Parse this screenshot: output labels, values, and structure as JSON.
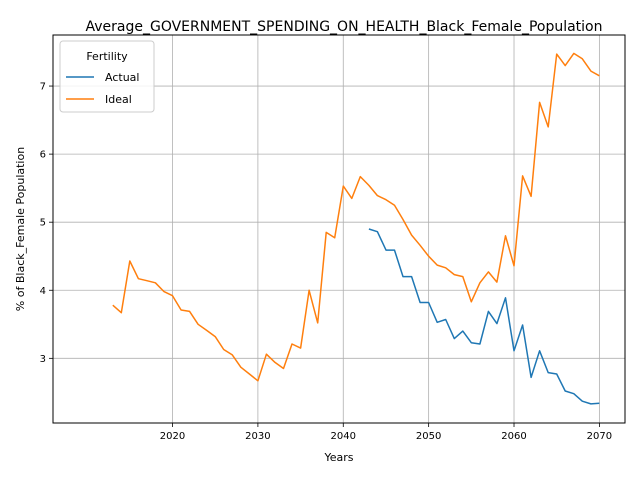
{
  "chart_data": {
    "type": "line",
    "title": "Average_GOVERNMENT_SPENDING_ON_HEALTH_Black_Female_Population",
    "xlabel": "Years",
    "ylabel": "% of Black_Female Population",
    "xlim": [
      2006,
      2073
    ],
    "ylim": [
      2.05,
      7.75
    ],
    "xticks": [
      2020,
      2030,
      2040,
      2050,
      2060,
      2070
    ],
    "yticks": [
      3,
      4,
      5,
      6,
      7
    ],
    "grid": true,
    "legend": {
      "title": "Fertility",
      "placement": "top-left"
    },
    "series": [
      {
        "name": "Actual",
        "color": "#1f77b4",
        "x": [
          2043,
          2044,
          2045,
          2046,
          2047,
          2048,
          2049,
          2050,
          2051,
          2052,
          2053,
          2054,
          2055,
          2056,
          2057,
          2058,
          2059,
          2060,
          2061,
          2062,
          2063,
          2064,
          2065,
          2066,
          2067,
          2068,
          2069,
          2070
        ],
        "y": [
          4.9,
          4.86,
          4.59,
          4.59,
          4.2,
          4.2,
          3.82,
          3.82,
          3.53,
          3.57,
          3.29,
          3.4,
          3.23,
          3.21,
          3.69,
          3.51,
          3.89,
          3.11,
          3.49,
          2.72,
          3.11,
          2.79,
          2.77,
          2.52,
          2.48,
          2.37,
          2.33,
          2.34
        ]
      },
      {
        "name": "Ideal",
        "color": "#ff7f0e",
        "x": [
          2013,
          2014,
          2015,
          2016,
          2017,
          2018,
          2019,
          2020,
          2021,
          2022,
          2023,
          2024,
          2025,
          2026,
          2027,
          2028,
          2029,
          2030,
          2031,
          2032,
          2033,
          2034,
          2035,
          2036,
          2037,
          2038,
          2039,
          2040,
          2041,
          2042,
          2043,
          2044,
          2045,
          2046,
          2047,
          2048,
          2049,
          2050,
          2051,
          2052,
          2053,
          2054,
          2055,
          2056,
          2057,
          2058,
          2059,
          2060,
          2061,
          2062,
          2063,
          2064,
          2065,
          2066,
          2067,
          2068,
          2069,
          2070
        ],
        "y": [
          3.78,
          3.67,
          4.43,
          4.17,
          4.14,
          4.11,
          3.98,
          3.92,
          3.71,
          3.69,
          3.5,
          3.41,
          3.32,
          3.13,
          3.05,
          2.87,
          2.77,
          2.67,
          3.06,
          2.94,
          2.85,
          3.21,
          3.15,
          4.0,
          3.52,
          4.85,
          4.77,
          5.53,
          5.35,
          5.67,
          5.54,
          5.39,
          5.33,
          5.25,
          5.04,
          4.81,
          4.66,
          4.5,
          4.37,
          4.33,
          4.23,
          4.2,
          3.83,
          4.11,
          4.27,
          4.12,
          4.8,
          4.36,
          5.68,
          5.38,
          6.76,
          6.4,
          7.47,
          7.3,
          7.48,
          7.4,
          7.22,
          7.15
        ]
      }
    ]
  }
}
